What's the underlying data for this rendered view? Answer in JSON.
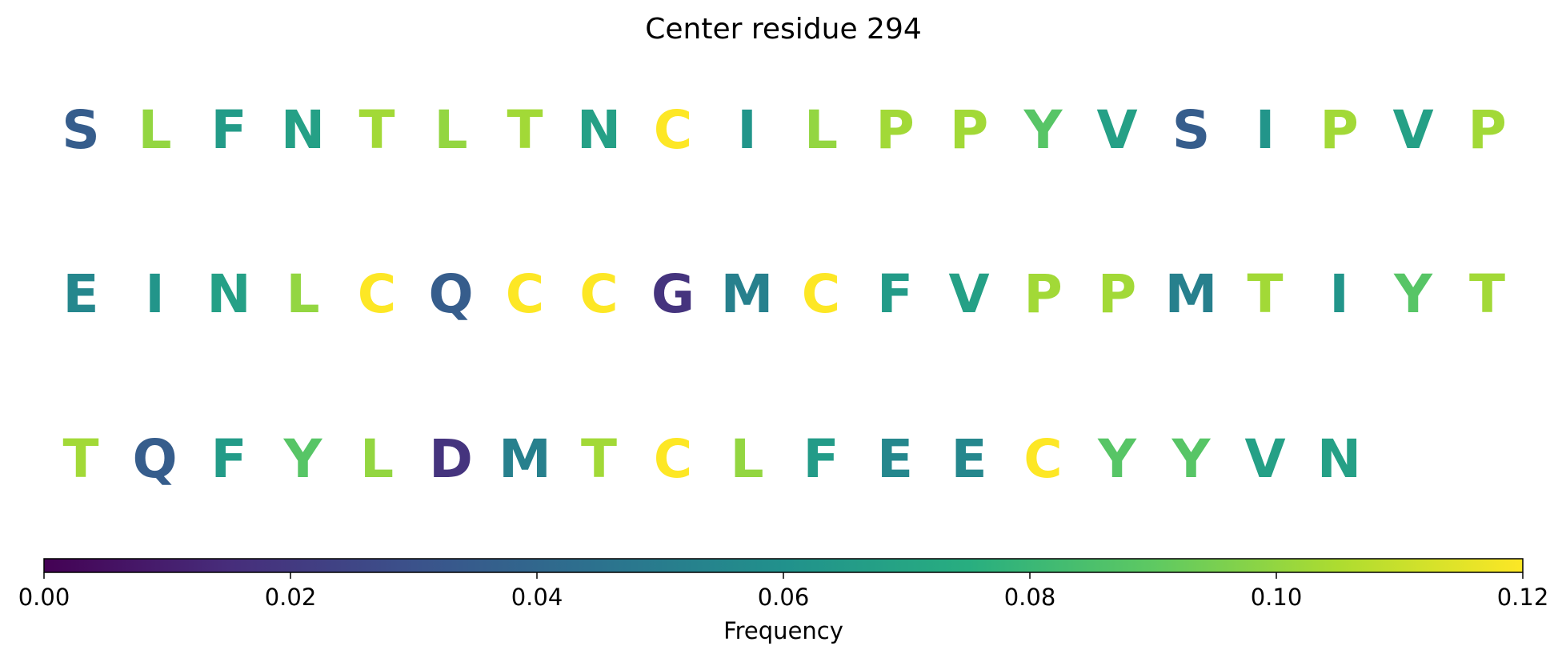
{
  "chart_data": {
    "type": "heatmap",
    "title": "Center residue 294",
    "rows": [
      [
        {
          "residue": "S",
          "frequency": 0.035
        },
        {
          "residue": "L",
          "frequency": 0.1
        },
        {
          "residue": "F",
          "frequency": 0.065
        },
        {
          "residue": "N",
          "frequency": 0.068
        },
        {
          "residue": "T",
          "frequency": 0.103
        },
        {
          "residue": "L",
          "frequency": 0.1
        },
        {
          "residue": "T",
          "frequency": 0.103
        },
        {
          "residue": "N",
          "frequency": 0.068
        },
        {
          "residue": "C",
          "frequency": 0.12
        },
        {
          "residue": "I",
          "frequency": 0.062
        },
        {
          "residue": "L",
          "frequency": 0.1
        },
        {
          "residue": "P",
          "frequency": 0.103
        },
        {
          "residue": "P",
          "frequency": 0.103
        },
        {
          "residue": "Y",
          "frequency": 0.088
        },
        {
          "residue": "V",
          "frequency": 0.068
        },
        {
          "residue": "S",
          "frequency": 0.035
        },
        {
          "residue": "I",
          "frequency": 0.062
        },
        {
          "residue": "P",
          "frequency": 0.103
        },
        {
          "residue": "V",
          "frequency": 0.068
        },
        {
          "residue": "P",
          "frequency": 0.103
        }
      ],
      [
        {
          "residue": "E",
          "frequency": 0.055
        },
        {
          "residue": "I",
          "frequency": 0.062
        },
        {
          "residue": "N",
          "frequency": 0.068
        },
        {
          "residue": "L",
          "frequency": 0.1
        },
        {
          "residue": "C",
          "frequency": 0.12
        },
        {
          "residue": "Q",
          "frequency": 0.035
        },
        {
          "residue": "C",
          "frequency": 0.12
        },
        {
          "residue": "C",
          "frequency": 0.12
        },
        {
          "residue": "G",
          "frequency": 0.018
        },
        {
          "residue": "M",
          "frequency": 0.052
        },
        {
          "residue": "C",
          "frequency": 0.12
        },
        {
          "residue": "F",
          "frequency": 0.065
        },
        {
          "residue": "V",
          "frequency": 0.068
        },
        {
          "residue": "P",
          "frequency": 0.103
        },
        {
          "residue": "P",
          "frequency": 0.103
        },
        {
          "residue": "M",
          "frequency": 0.052
        },
        {
          "residue": "T",
          "frequency": 0.103
        },
        {
          "residue": "I",
          "frequency": 0.062
        },
        {
          "residue": "Y",
          "frequency": 0.088
        },
        {
          "residue": "T",
          "frequency": 0.103
        }
      ],
      [
        {
          "residue": "T",
          "frequency": 0.103
        },
        {
          "residue": "Q",
          "frequency": 0.035
        },
        {
          "residue": "F",
          "frequency": 0.065
        },
        {
          "residue": "Y",
          "frequency": 0.088
        },
        {
          "residue": "L",
          "frequency": 0.1
        },
        {
          "residue": "D",
          "frequency": 0.018
        },
        {
          "residue": "M",
          "frequency": 0.052
        },
        {
          "residue": "T",
          "frequency": 0.103
        },
        {
          "residue": "C",
          "frequency": 0.12
        },
        {
          "residue": "L",
          "frequency": 0.1
        },
        {
          "residue": "F",
          "frequency": 0.065
        },
        {
          "residue": "E",
          "frequency": 0.055
        },
        {
          "residue": "E",
          "frequency": 0.055
        },
        {
          "residue": "C",
          "frequency": 0.12
        },
        {
          "residue": "Y",
          "frequency": 0.088
        },
        {
          "residue": "Y",
          "frequency": 0.088
        },
        {
          "residue": "V",
          "frequency": 0.068
        },
        {
          "residue": "N",
          "frequency": 0.068
        }
      ]
    ],
    "colorbar": {
      "label": "Frequency",
      "colormap": "viridis",
      "range": [
        0,
        0.12
      ],
      "orientation": "horizontal",
      "ticks": [
        0.0,
        0.02,
        0.04,
        0.06,
        0.08,
        0.1,
        0.12
      ],
      "tick_labels": [
        "0.00",
        "0.02",
        "0.04",
        "0.06",
        "0.08",
        "0.10",
        "0.12"
      ]
    }
  }
}
